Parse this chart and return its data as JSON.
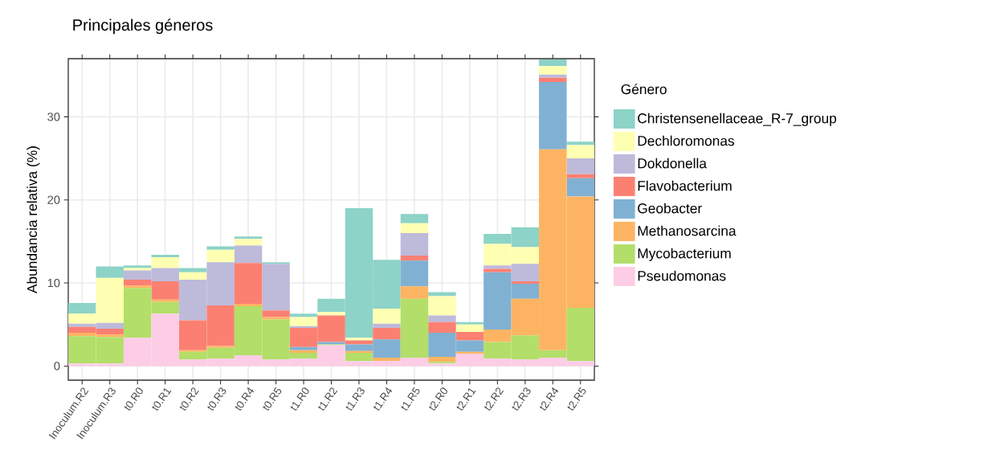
{
  "chart_data": {
    "type": "bar",
    "stacked": true,
    "title": "Principales géneros",
    "ylabel": "Abundancia relativa (%)",
    "legend_title": "Género",
    "legend": "right",
    "grid": true,
    "categories": [
      "Inoculum.R2",
      "Inoculum.R3",
      "t0.R0",
      "t0.R1",
      "t0.R2",
      "t0.R3",
      "t0.R4",
      "t0.R5",
      "t1.R0",
      "t1.R2",
      "t1.R3",
      "t1.R4",
      "t1.R5",
      "t2.R0",
      "t2.R1",
      "t2.R2",
      "t2.R3",
      "t2.R4",
      "t2.R5"
    ],
    "ylim": [
      -1.7,
      37.0
    ],
    "yticks": [
      0,
      10,
      20,
      30
    ],
    "series": [
      {
        "name": "Pseudomonas",
        "color": "#fccde5",
        "values": [
          0.3,
          0.3,
          3.4,
          6.3,
          0.8,
          0.9,
          1.3,
          0.8,
          0.9,
          2.5,
          0.6,
          0.6,
          1.0,
          0.3,
          1.5,
          0.9,
          0.8,
          1.0,
          0.6
        ]
      },
      {
        "name": "Mycobacterium",
        "color": "#b3de69",
        "values": [
          3.3,
          3.2,
          6.0,
          1.4,
          0.9,
          1.3,
          5.9,
          4.8,
          0.7,
          0.1,
          1.0,
          0,
          7.1,
          0.2,
          0,
          2.0,
          2.9,
          0.9,
          6.4
        ]
      },
      {
        "name": "Methanosarcina",
        "color": "#fdb462",
        "values": [
          0.4,
          0.3,
          0.3,
          0.3,
          0.2,
          0.2,
          0.3,
          0.3,
          0.3,
          0,
          0.2,
          0.4,
          1.5,
          0.6,
          0.2,
          1.5,
          4.4,
          24.2,
          13.4
        ]
      },
      {
        "name": "Geobacter",
        "color": "#80b1d3",
        "values": [
          0,
          0,
          0,
          0,
          0,
          0,
          0,
          0,
          0.4,
          0.3,
          0.8,
          2.2,
          3.1,
          2.9,
          1.4,
          6.9,
          1.8,
          8.1,
          2.2
        ]
      },
      {
        "name": "Flavobacterium",
        "color": "#fb8072",
        "values": [
          0.7,
          0.7,
          0.7,
          2.2,
          3.6,
          4.9,
          4.9,
          0.8,
          2.3,
          3.2,
          0.5,
          1.4,
          0.6,
          1.3,
          1.0,
          0.4,
          0.3,
          0.5,
          0.5
        ]
      },
      {
        "name": "Dokdonella",
        "color": "#bebada",
        "values": [
          0.4,
          0.7,
          1.1,
          1.6,
          4.9,
          5.2,
          2.1,
          5.6,
          0.2,
          0,
          0,
          0.5,
          2.7,
          0.8,
          0,
          0.4,
          2.1,
          0.4,
          1.9
        ]
      },
      {
        "name": "Dechloromonas",
        "color": "#ffffb3",
        "values": [
          1.2,
          5.4,
          0.3,
          1.3,
          0.9,
          1.5,
          0.8,
          0,
          1.1,
          0.4,
          0.3,
          1.8,
          1.2,
          2.3,
          0.9,
          2.6,
          2.0,
          1.0,
          1.6
        ]
      },
      {
        "name": "Christensenellaceae_R-7_group",
        "color": "#8dd3c7",
        "values": [
          1.3,
          1.4,
          0.3,
          0.3,
          0.5,
          0.4,
          0.3,
          0.2,
          0.4,
          1.6,
          15.6,
          5.9,
          1.1,
          0.5,
          0.3,
          1.2,
          2.4,
          0.8,
          0.4
        ]
      }
    ]
  }
}
